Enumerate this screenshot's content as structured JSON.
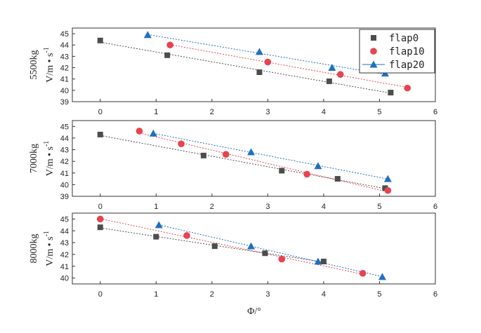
{
  "chart_data": {
    "type": "scatter",
    "xlabel": "Φ/°",
    "xlim": [
      -0.5,
      6
    ],
    "xticks": [
      0,
      1,
      2,
      3,
      4,
      5,
      6
    ],
    "legend": {
      "placement": "top-right",
      "entries": [
        {
          "name": "flap0",
          "marker": "square",
          "color": "#4d4d4d"
        },
        {
          "name": "flap10",
          "marker": "circle",
          "color": "#e8434f"
        },
        {
          "name": "flap20",
          "marker": "triangle",
          "color": "#1f6fc2"
        }
      ]
    },
    "panels": [
      {
        "row_label": "5500kg",
        "ylabel_main": "V/m",
        "ylabel_unit": "s",
        "ylabel_sup": "-1",
        "ylim": [
          39,
          45.5
        ],
        "yticks": [
          39,
          40,
          41,
          42,
          43,
          44,
          45
        ],
        "series": [
          {
            "name": "flap0",
            "x": [
              0,
              1.2,
              2.85,
              4.1,
              5.2
            ],
            "y": [
              44.4,
              43.1,
              41.6,
              40.8,
              39.8
            ]
          },
          {
            "name": "flap10",
            "x": [
              1.25,
              3.0,
              4.3,
              5.5
            ],
            "y": [
              44.0,
              42.5,
              41.4,
              40.2
            ]
          },
          {
            "name": "flap20",
            "x": [
              0.85,
              2.85,
              4.15,
              5.1
            ],
            "y": [
              44.9,
              43.4,
              42.0,
              41.5
            ]
          }
        ]
      },
      {
        "row_label": "7000kg",
        "ylabel_main": "V/m",
        "ylabel_unit": "s",
        "ylabel_sup": "-1",
        "ylim": [
          39,
          45.5
        ],
        "yticks": [
          39,
          40,
          41,
          42,
          43,
          44,
          45
        ],
        "series": [
          {
            "name": "flap0",
            "x": [
              0,
              1.85,
              3.25,
              4.25,
              5.1
            ],
            "y": [
              44.3,
              42.5,
              41.2,
              40.5,
              39.7
            ]
          },
          {
            "name": "flap10",
            "x": [
              0.7,
              1.45,
              2.25,
              3.7,
              5.15
            ],
            "y": [
              44.6,
              43.5,
              42.6,
              40.9,
              39.5
            ]
          },
          {
            "name": "flap20",
            "x": [
              0.95,
              2.7,
              3.9,
              5.15
            ],
            "y": [
              44.4,
              42.8,
              41.6,
              40.5
            ]
          }
        ]
      },
      {
        "row_label": "8000kg",
        "ylabel_main": "V/m",
        "ylabel_unit": "s",
        "ylabel_sup": "-1",
        "ylim": [
          39.5,
          45.5
        ],
        "yticks": [
          40,
          41,
          42,
          43,
          44,
          45
        ],
        "series": [
          {
            "name": "flap0",
            "x": [
              0,
              1.0,
              2.05,
              2.95,
              4.0
            ],
            "y": [
              44.3,
              43.5,
              42.7,
              42.1,
              41.4
            ]
          },
          {
            "name": "flap10",
            "x": [
              0,
              1.55,
              3.25,
              4.7
            ],
            "y": [
              45.0,
              43.6,
              41.6,
              40.4
            ]
          },
          {
            "name": "flap20",
            "x": [
              1.05,
              2.7,
              3.9,
              5.05
            ],
            "y": [
              44.5,
              42.7,
              41.4,
              40.1
            ]
          }
        ]
      }
    ]
  }
}
